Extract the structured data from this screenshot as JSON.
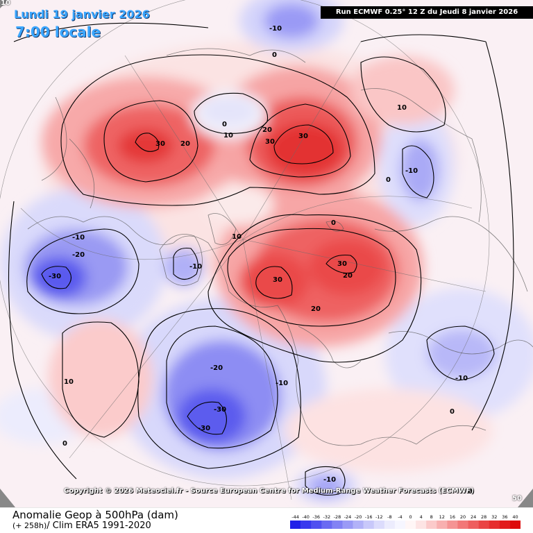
{
  "header": {
    "date_title": "Lundi 19 janvier 2026",
    "time_title": "7:00 locale",
    "run_info": "Run ECMWF 0.25° 12 Z du Jeudi 8 janvier 2026"
  },
  "copyright": "Copyright © 2026 Meteociel.fr - Source European Centre for Medium-Range Weather Forecasts (ECMWF)",
  "footer": {
    "line1": "Anomalie Geop à 500hPa (dam)",
    "line2_small": "(+ 258h)",
    "line2_rest": "/ Clim ERA5 1991-2020"
  },
  "corners": {
    "top_left": "10",
    "bottom_right": "50"
  },
  "legend": {
    "ticks": [
      "-44",
      "-40",
      "-36",
      "-32",
      "-28",
      "-24",
      "-20",
      "-16",
      "-12",
      "-8",
      "-4",
      "0",
      "4",
      "8",
      "12",
      "16",
      "20",
      "24",
      "28",
      "32",
      "36",
      "40"
    ],
    "colors": [
      "#2020e8",
      "#3838ee",
      "#5050f0",
      "#6a6af2",
      "#8282f4",
      "#9a9af6",
      "#b2b2f8",
      "#c8c8fa",
      "#dcdcfc",
      "#ececfd",
      "#f6f6ff",
      "#fff6f6",
      "#fde4e4",
      "#fbcaca",
      "#f8b0b0",
      "#f59494",
      "#f27878",
      "#ee5e5e",
      "#ea4444",
      "#e62e2e",
      "#e21c1c",
      "#dd0a0a"
    ]
  },
  "contour_labels": [
    {
      "id": "lbl-n10-top",
      "text": "-10"
    },
    {
      "id": "lbl-0-top",
      "text": "0"
    },
    {
      "id": "lbl-30-canada",
      "text": "30"
    },
    {
      "id": "lbl-20-canada",
      "text": "20"
    },
    {
      "id": "lbl-0-arctic",
      "text": "0"
    },
    {
      "id": "lbl-10-arctic",
      "text": "10"
    },
    {
      "id": "lbl-20-siberia",
      "text": "20"
    },
    {
      "id": "lbl-30-siberia-a",
      "text": "30"
    },
    {
      "id": "lbl-30-siberia-b",
      "text": "30"
    },
    {
      "id": "lbl-10-ne",
      "text": "10"
    },
    {
      "id": "lbl-n10-east",
      "text": "-10"
    },
    {
      "id": "lbl-0-east",
      "text": "0"
    },
    {
      "id": "lbl-0-central",
      "text": "0"
    },
    {
      "id": "lbl-10-central",
      "text": "10"
    },
    {
      "id": "lbl-n10-west-a",
      "text": "-10"
    },
    {
      "id": "lbl-n20-west",
      "text": "-20"
    },
    {
      "id": "lbl-n30-west",
      "text": "-30"
    },
    {
      "id": "lbl-n10-west-b",
      "text": "-10"
    },
    {
      "id": "lbl-30-eurasia-a",
      "text": "30"
    },
    {
      "id": "lbl-30-eurasia-b",
      "text": "30"
    },
    {
      "id": "lbl-20-eurasia-a",
      "text": "20"
    },
    {
      "id": "lbl-20-eurasia-b",
      "text": "20"
    },
    {
      "id": "lbl-10-pacific",
      "text": "10"
    },
    {
      "id": "lbl-0-sw",
      "text": "0"
    },
    {
      "id": "lbl-n20-atl",
      "text": "-20"
    },
    {
      "id": "lbl-n30-atl-a",
      "text": "-30"
    },
    {
      "id": "lbl-n30-atl-b",
      "text": "-30"
    },
    {
      "id": "lbl-n10-atl",
      "text": "-10"
    },
    {
      "id": "lbl-n10-se",
      "text": "-10"
    },
    {
      "id": "lbl-0-se",
      "text": "0"
    },
    {
      "id": "lbl-n10-bottom",
      "text": "-10"
    },
    {
      "id": "lbl-0-bottom",
      "text": "0"
    }
  ]
}
